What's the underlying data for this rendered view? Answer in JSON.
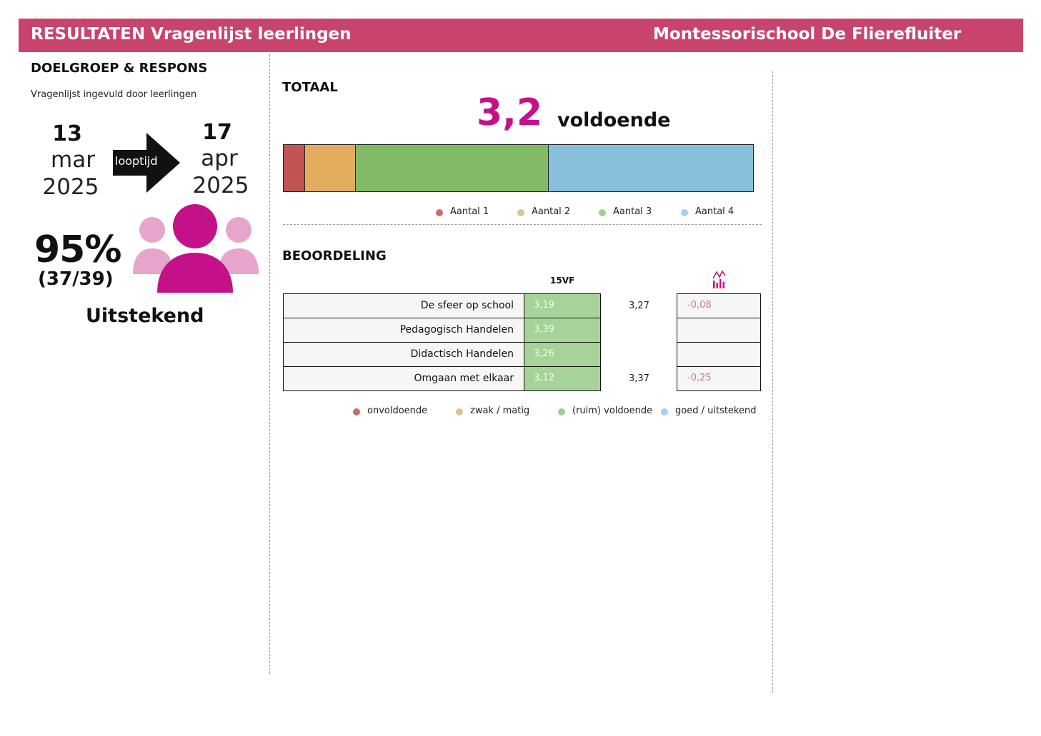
{
  "header": {
    "title": "RESULTATEN Vragenlijst leerlingen",
    "school": "Montessorischool De Flierefluiter"
  },
  "respons": {
    "heading": "DOELGROEP & RESPONS",
    "subtitle": "Vragenlijst ingevuld door leerlingen",
    "start": {
      "day": "13",
      "month": "mar",
      "year": "2025"
    },
    "end": {
      "day": "17",
      "month": "apr",
      "year": "2025"
    },
    "runtime_label": "looptijd",
    "percentage": "95%",
    "count": "(37/39)",
    "rating": "Uitstekend",
    "colors": {
      "primary": "#c4118a",
      "secondary": "#e6a6cc"
    }
  },
  "totaal": {
    "heading": "TOTAAL",
    "score": "3,2",
    "score_label": "voldoende"
  },
  "chart_data": {
    "type": "bar",
    "orientation": "horizontal-stacked",
    "categories": [
      "Totaal"
    ],
    "unit": "percent of responses (estimated from segment widths)",
    "series": [
      {
        "name": "Aantal 1",
        "values": [
          4.6
        ],
        "color": "#c25452"
      },
      {
        "name": "Aantal 2",
        "values": [
          10.8
        ],
        "color": "#e2ad5e"
      },
      {
        "name": "Aantal 3",
        "values": [
          41.0
        ],
        "color": "#82bb68"
      },
      {
        "name": "Aantal 4",
        "values": [
          43.6
        ],
        "color": "#88c0dc"
      }
    ],
    "legend": "bottom",
    "legend_colors": [
      "#c76e6e",
      "#d8c68e",
      "#9ed18e",
      "#a8d0e6"
    ]
  },
  "beoordeling": {
    "heading": "BEOORDELING",
    "col_label": "15VF",
    "trend_icon": "bar-chart-trend-icon",
    "rows": [
      {
        "label": "De sfeer op school",
        "value": "3,19",
        "ref": "3,27",
        "diff": "-0,08"
      },
      {
        "label": "Pedagogisch Handelen",
        "value": "3,39",
        "ref": "",
        "diff": ""
      },
      {
        "label": "Didactisch Handelen",
        "value": "3,26",
        "ref": "",
        "diff": ""
      },
      {
        "label": "Omgaan met elkaar",
        "value": "3,12",
        "ref": "3,37",
        "diff": "-0,25"
      }
    ],
    "legend": [
      {
        "label": "onvoldoende",
        "color": "#c76e6e"
      },
      {
        "label": "zwak / matig",
        "color": "#d8c68e"
      },
      {
        "label": "(ruim) voldoende",
        "color": "#9ed18e"
      },
      {
        "label": "goed / uitstekend",
        "color": "#a8d0e6"
      }
    ]
  }
}
